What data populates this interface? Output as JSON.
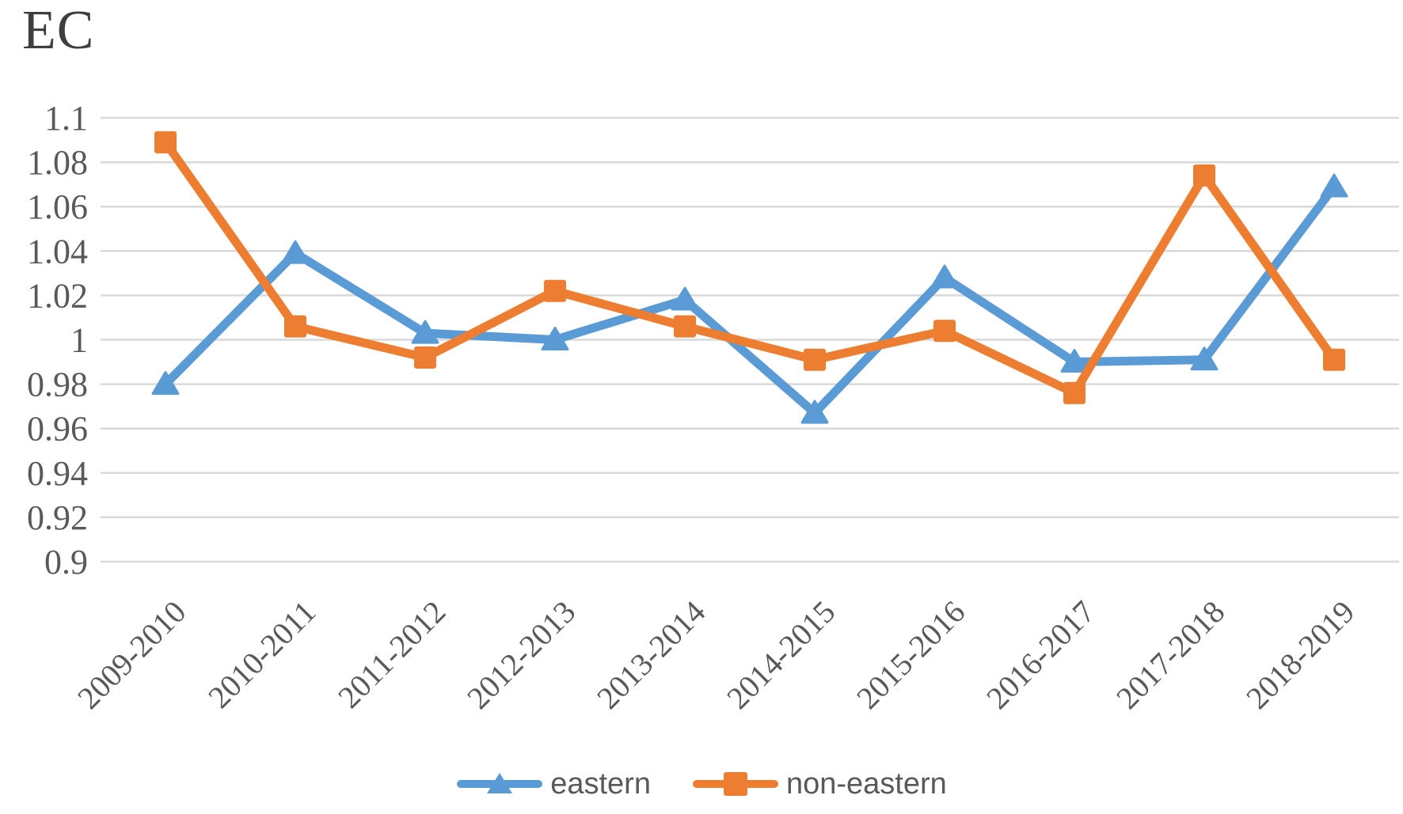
{
  "chart_data": {
    "type": "line",
    "title": "EC",
    "xlabel": "",
    "ylabel": "",
    "categories": [
      "2009-2010",
      "2010-2011",
      "2011-2012",
      "2012-2013",
      "2013-2014",
      "2014-2015",
      "2015-2016",
      "2016-2017",
      "2017-2018",
      "2018-2019"
    ],
    "series": [
      {
        "name": "eastern",
        "color": "#5B9BD5",
        "marker": "triangle",
        "values": [
          0.98,
          1.039,
          1.003,
          1.0,
          1.018,
          0.967,
          1.028,
          0.99,
          0.991,
          1.069
        ]
      },
      {
        "name": "non-eastern",
        "color": "#ED7D31",
        "marker": "square",
        "values": [
          1.089,
          1.006,
          0.992,
          1.022,
          1.006,
          0.991,
          1.004,
          0.976,
          1.074,
          0.991
        ]
      }
    ],
    "ylim": [
      0.9,
      1.1
    ],
    "y_tick_labels": [
      "1.1",
      "1.08",
      "1.06",
      "1.04",
      "1.02",
      "1",
      "0.98",
      "0.96",
      "0.94",
      "0.92",
      "0.9"
    ],
    "x_tick_rotation_deg": -45,
    "grid": "horizontal",
    "legend_position": "bottom",
    "colors": {
      "gridline": "#D9D9D9",
      "axis_text": "#595959",
      "title_text": "#3F3F3F",
      "legend_text": "#595959"
    }
  }
}
